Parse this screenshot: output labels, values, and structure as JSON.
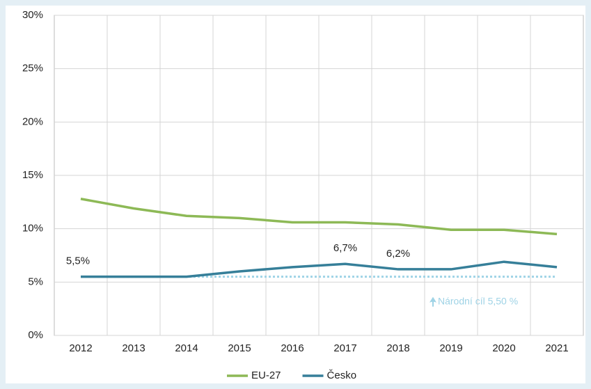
{
  "chart_data": {
    "type": "line",
    "categories": [
      "2012",
      "2013",
      "2014",
      "2015",
      "2016",
      "2017",
      "2018",
      "2019",
      "2020",
      "2021"
    ],
    "series": [
      {
        "name": "EU-27",
        "color": "#8db956",
        "values": [
          12.8,
          11.9,
          11.2,
          11.0,
          10.6,
          10.6,
          10.4,
          9.9,
          9.9,
          9.5
        ]
      },
      {
        "name": "Česko",
        "color": "#367f99",
        "values": [
          5.5,
          5.5,
          5.5,
          6.0,
          6.4,
          6.7,
          6.2,
          6.2,
          6.9,
          6.4
        ],
        "value_labels": [
          "5,5%",
          null,
          null,
          null,
          null,
          "6,7%",
          "6,2%",
          null,
          null,
          null
        ]
      }
    ],
    "target": {
      "value": 5.5,
      "label": "Národní cíl 5,50 %",
      "color": "#9fd3e6"
    },
    "ylim": [
      0,
      30
    ],
    "yticks": [
      {
        "value": 0,
        "label": "0%"
      },
      {
        "value": 5,
        "label": "5%"
      },
      {
        "value": 10,
        "label": "10%"
      },
      {
        "value": 15,
        "label": "15%"
      },
      {
        "value": 20,
        "label": "20%"
      },
      {
        "value": 25,
        "label": "25%"
      },
      {
        "value": 30,
        "label": "30%"
      }
    ],
    "grid": true,
    "legend": "bottom"
  }
}
